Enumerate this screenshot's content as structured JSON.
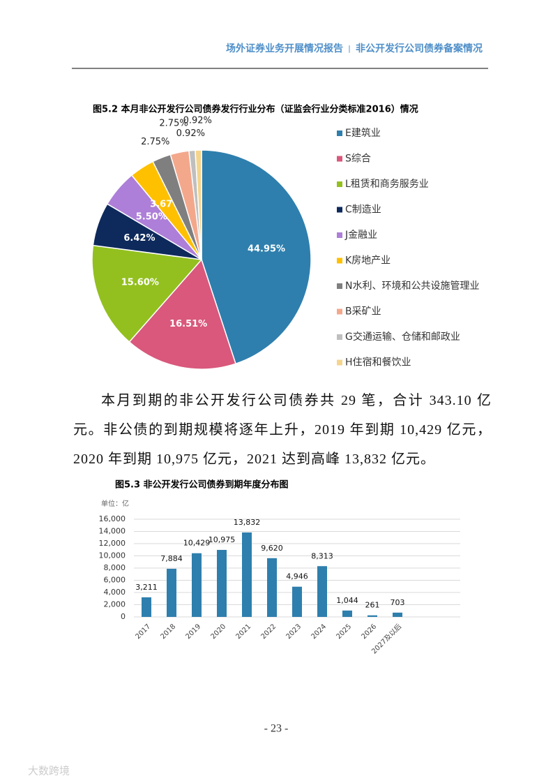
{
  "header": {
    "title": "场外证券业务开展情况报告",
    "separator": "|",
    "section": "非公开发行公司债券备案情况"
  },
  "chart_data": [
    {
      "type": "pie",
      "title": "图5.2 本月非公开发行公司债券发行行业分布（证监会行业分类标准2016）情况",
      "categories": [
        "E建筑业",
        "S综合",
        "L租赁和商务服务业",
        "C制造业",
        "J金融业",
        "K房地产业",
        "N水利、环境和公共设施管理业",
        "B采矿业",
        "G交通运输、仓储和邮政业",
        "H住宿和餐饮业"
      ],
      "values": [
        44.95,
        16.51,
        15.6,
        6.42,
        5.5,
        3.67,
        2.75,
        2.75,
        0.92,
        0.92
      ],
      "value_labels": [
        "44.95%",
        "16.51%",
        "15.60%",
        "6.42%",
        "5.50%",
        "3.67%",
        "2.75%",
        "2.75%",
        "0.92%",
        "0.92%"
      ],
      "colors": [
        "#2e7fad",
        "#d9587b",
        "#93c01f",
        "#0e2a5c",
        "#ad7fd8",
        "#ffc000",
        "#7f7f7f",
        "#f3a88c",
        "#bfbfbf",
        "#f5d58c"
      ],
      "legend": "right"
    },
    {
      "type": "bar",
      "title": "图5.3 非公开发行公司债券到期年度分布图",
      "unit": "单位：亿",
      "categories": [
        "2017",
        "2018",
        "2019",
        "2020",
        "2021",
        "2022",
        "2023",
        "2024",
        "2025",
        "2026",
        "2027及以后"
      ],
      "values": [
        3211,
        7884,
        10429,
        10975,
        13832,
        9620,
        4946,
        8313,
        1044,
        261,
        703
      ],
      "value_labels": [
        "3,211",
        "7,884",
        "10,429",
        "10,975",
        "13,832",
        "9,620",
        "4,946",
        "8,313",
        "1,044",
        "261",
        "703"
      ],
      "color": "#2e7fad",
      "ylim": [
        0,
        16000
      ],
      "yticks": [
        0,
        {
          "value": 2000,
          "label": "2,000"
        },
        {
          "value": 4000,
          "label": "4,000"
        },
        {
          "value": 6000,
          "label": "6,000"
        },
        {
          "value": 8000,
          "label": "8,000"
        },
        {
          "value": 10000,
          "label": "10,000"
        },
        {
          "value": 12000,
          "label": "12,000"
        },
        {
          "value": 14000,
          "label": "14,000"
        },
        {
          "value": 16000,
          "label": "16,000"
        }
      ],
      "grid": true
    }
  ],
  "body": {
    "paragraph": "本月到期的非公开发行公司债券共 29 笔，合计 343.10 亿元。非公债的到期规模将逐年上升，2019 年到期 10,429 亿元，2020 年到期 10,975 亿元，2021 达到高峰 13,832 亿元。"
  },
  "footer": {
    "page": "- 23 -",
    "watermark": "大数跨境"
  }
}
